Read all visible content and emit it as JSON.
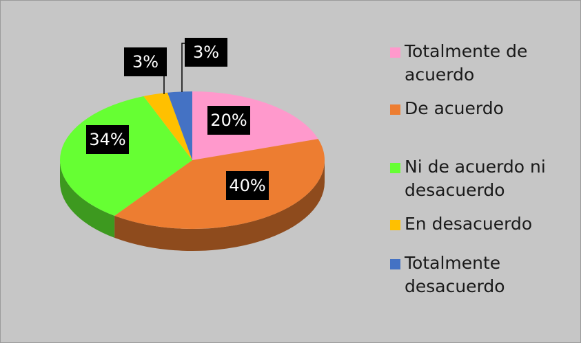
{
  "chart_data": {
    "type": "pie",
    "categories": [
      "Totalmente de acuerdo",
      "De acuerdo",
      "Ni de acuerdo ni desacuerdo",
      "En desacuerdo",
      "Totalmente desacuerdo"
    ],
    "values": [
      20,
      40,
      34,
      3,
      3
    ],
    "value_labels": [
      "20%",
      "40%",
      "34%",
      "3%",
      "3%"
    ],
    "colors": [
      "#ff99cc",
      "#ed7d31",
      "#66ff33",
      "#ffc000",
      "#4472c4"
    ],
    "legend": "right"
  }
}
